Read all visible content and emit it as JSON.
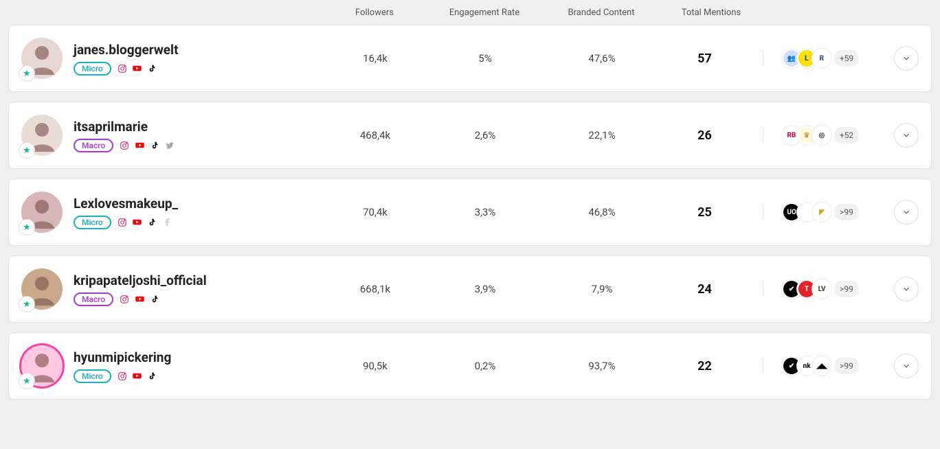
{
  "columns": {
    "followers": "Followers",
    "engagement": "Engagement Rate",
    "branded": "Branded Content",
    "mentions": "Total Mentions"
  },
  "tier_labels": {
    "micro": "Micro",
    "macro": "Macro"
  },
  "rows": [
    {
      "username": "janes.bloggerwelt",
      "tier": "micro",
      "socials": [
        "instagram",
        "youtube",
        "tiktok"
      ],
      "followers": "16,4k",
      "engagement": "5%",
      "branded": "47,6%",
      "mentions": "57",
      "brand_logos": [
        {
          "bg": "#cfe0ff",
          "fg": "#234",
          "text": "👥"
        },
        {
          "bg": "#ffe000",
          "fg": "#0033a0",
          "text": "L"
        },
        {
          "bg": "#ffffff",
          "fg": "#1e3a8a",
          "text": "R"
        }
      ],
      "more": "+59",
      "avatar_bg": "#e7d7d3",
      "avatar_ring": false
    },
    {
      "username": "itsaprilmarie",
      "tier": "macro",
      "socials": [
        "instagram",
        "youtube",
        "tiktok",
        "twitter"
      ],
      "followers": "468,4k",
      "engagement": "2,6%",
      "branded": "22,1%",
      "mentions": "26",
      "brand_logos": [
        {
          "bg": "#ffffff",
          "fg": "#cc0033",
          "text": "RB"
        },
        {
          "bg": "#fff8d9",
          "fg": "#caa445",
          "text": "♛"
        },
        {
          "bg": "#ffffff",
          "fg": "#333",
          "text": "◎"
        }
      ],
      "more": "+52",
      "avatar_bg": "#e9dcd2",
      "avatar_ring": false
    },
    {
      "username": "Lexlovesmakeup_",
      "tier": "micro",
      "socials": [
        "instagram",
        "youtube",
        "tiktok",
        "facebook"
      ],
      "followers": "70,4k",
      "engagement": "3,3%",
      "branded": "46,8%",
      "mentions": "25",
      "brand_logos": [
        {
          "bg": "#000000",
          "fg": "#fff",
          "text": "UO"
        },
        {
          "bg": "#ffffff",
          "fg": "#000",
          "text": ""
        },
        {
          "bg": "#ffffff",
          "fg": "#d4a017",
          "text": "◤"
        }
      ],
      "more": ">99",
      "avatar_bg": "#d8b6b8",
      "avatar_ring": false
    },
    {
      "username": "kripapateljoshi_official",
      "tier": "macro",
      "socials": [
        "instagram",
        "youtube",
        "tiktok"
      ],
      "followers": "668,1k",
      "engagement": "3,9%",
      "branded": "7,9%",
      "mentions": "24",
      "brand_logos": [
        {
          "bg": "#000000",
          "fg": "#fff",
          "text": "✔"
        },
        {
          "bg": "#e82127",
          "fg": "#fff",
          "text": "T"
        },
        {
          "bg": "#ffffff",
          "fg": "#3a2e20",
          "text": "LV"
        }
      ],
      "more": ">99",
      "avatar_bg": "#c9a989",
      "avatar_ring": false
    },
    {
      "username": "hyunmipickering",
      "tier": "micro",
      "socials": [
        "instagram",
        "youtube",
        "tiktok"
      ],
      "followers": "90,5k",
      "engagement": "0,2%",
      "branded": "93,7%",
      "mentions": "22",
      "brand_logos": [
        {
          "bg": "#000000",
          "fg": "#fff",
          "text": "✔"
        },
        {
          "bg": "#ffffff",
          "fg": "#000",
          "text": "nk"
        },
        {
          "bg": "#ffffff",
          "fg": "#000",
          "text": "◢◣"
        }
      ],
      "more": ">99",
      "avatar_bg": "#ffc7e0",
      "avatar_ring": true
    }
  ]
}
